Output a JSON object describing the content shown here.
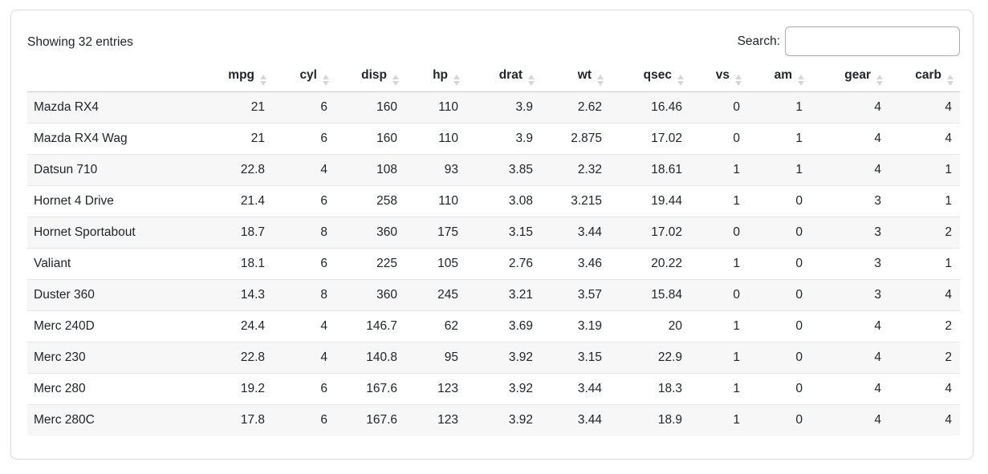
{
  "toolbar": {
    "info": "Showing 32 entries",
    "search_label": "Search:",
    "search_value": "",
    "search_placeholder": ""
  },
  "table": {
    "row_header_label": "",
    "columns": [
      "mpg",
      "cyl",
      "disp",
      "hp",
      "drat",
      "wt",
      "qsec",
      "vs",
      "am",
      "gear",
      "carb"
    ],
    "rows": [
      {
        "name": "Mazda RX4",
        "values": [
          "21",
          "6",
          "160",
          "110",
          "3.9",
          "2.62",
          "16.46",
          "0",
          "1",
          "4",
          "4"
        ]
      },
      {
        "name": "Mazda RX4 Wag",
        "values": [
          "21",
          "6",
          "160",
          "110",
          "3.9",
          "2.875",
          "17.02",
          "0",
          "1",
          "4",
          "4"
        ]
      },
      {
        "name": "Datsun 710",
        "values": [
          "22.8",
          "4",
          "108",
          "93",
          "3.85",
          "2.32",
          "18.61",
          "1",
          "1",
          "4",
          "1"
        ]
      },
      {
        "name": "Hornet 4 Drive",
        "values": [
          "21.4",
          "6",
          "258",
          "110",
          "3.08",
          "3.215",
          "19.44",
          "1",
          "0",
          "3",
          "1"
        ]
      },
      {
        "name": "Hornet Sportabout",
        "values": [
          "18.7",
          "8",
          "360",
          "175",
          "3.15",
          "3.44",
          "17.02",
          "0",
          "0",
          "3",
          "2"
        ]
      },
      {
        "name": "Valiant",
        "values": [
          "18.1",
          "6",
          "225",
          "105",
          "2.76",
          "3.46",
          "20.22",
          "1",
          "0",
          "3",
          "1"
        ]
      },
      {
        "name": "Duster 360",
        "values": [
          "14.3",
          "8",
          "360",
          "245",
          "3.21",
          "3.57",
          "15.84",
          "0",
          "0",
          "3",
          "4"
        ]
      },
      {
        "name": "Merc 240D",
        "values": [
          "24.4",
          "4",
          "146.7",
          "62",
          "3.69",
          "3.19",
          "20",
          "1",
          "0",
          "4",
          "2"
        ]
      },
      {
        "name": "Merc 230",
        "values": [
          "22.8",
          "4",
          "140.8",
          "95",
          "3.92",
          "3.15",
          "22.9",
          "1",
          "0",
          "4",
          "2"
        ]
      },
      {
        "name": "Merc 280",
        "values": [
          "19.2",
          "6",
          "167.6",
          "123",
          "3.92",
          "3.44",
          "18.3",
          "1",
          "0",
          "4",
          "4"
        ]
      },
      {
        "name": "Merc 280C",
        "values": [
          "17.8",
          "6",
          "167.6",
          "123",
          "3.92",
          "3.44",
          "18.9",
          "1",
          "0",
          "4",
          "4"
        ]
      }
    ]
  },
  "colors": {
    "text": "#212529",
    "stripe": "#f7f7f7",
    "row_border": "#e4e7e9",
    "header_border": "#c9cdd1",
    "card_border": "#d9d9d9",
    "input_border": "#ababab",
    "sort_icon": "#d6d6d6"
  }
}
